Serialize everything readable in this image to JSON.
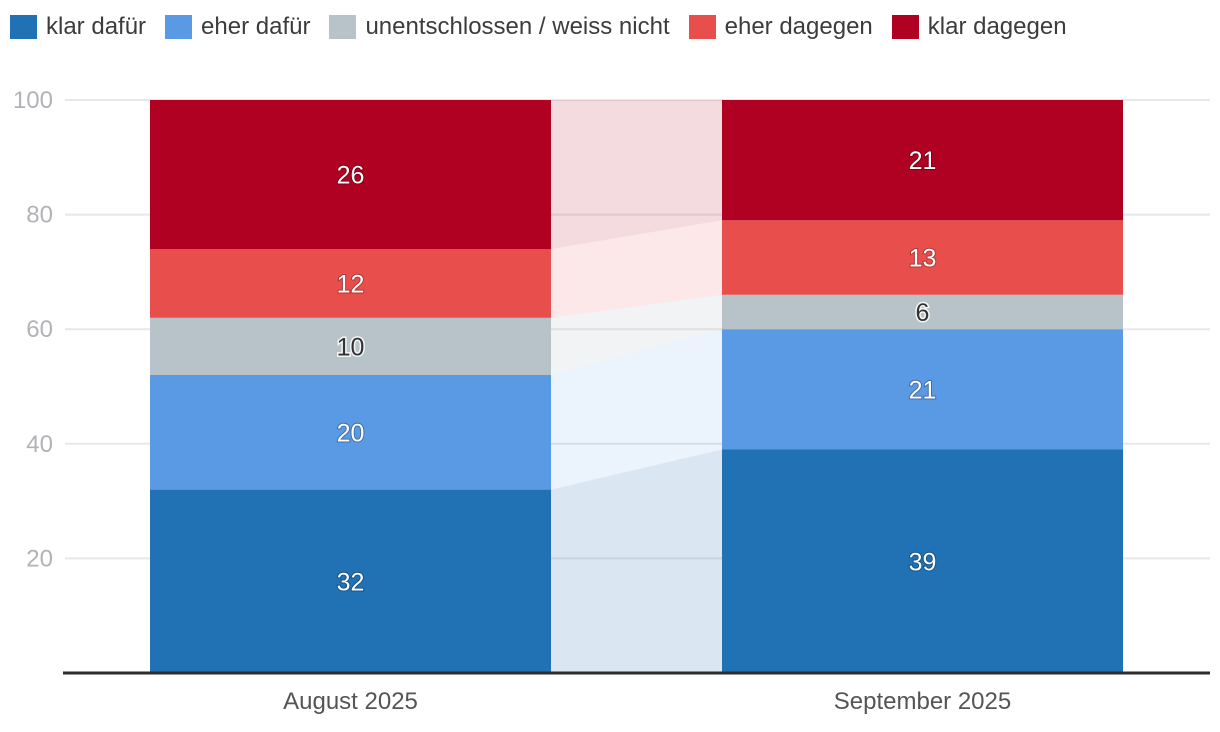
{
  "chart_data": {
    "type": "bar",
    "variant": "stacked-columns-with-flow-connectors",
    "title": "",
    "categories": [
      "August 2025",
      "September 2025"
    ],
    "series": [
      {
        "name": "klar dafür",
        "color": "#2171b5",
        "label_color": "#ffffff",
        "connector_opacity": 0.17,
        "values": [
          32,
          39
        ]
      },
      {
        "name": "eher dafür",
        "color": "#5a99e3",
        "label_color": "#ffffff",
        "connector_opacity": 0.12,
        "values": [
          20,
          21
        ]
      },
      {
        "name": "unentschlossen / weiss nicht",
        "color": "#b7c3c9",
        "label_color": "#333333",
        "connector_opacity": 0.2,
        "values": [
          10,
          6
        ]
      },
      {
        "name": "eher dagegen",
        "color": "#e84f4c",
        "label_color": "#ffffff",
        "connector_opacity": 0.13,
        "values": [
          12,
          13
        ]
      },
      {
        "name": "klar dagegen",
        "color": "#b00122",
        "label_color": "#ffffff",
        "connector_opacity": 0.14,
        "values": [
          26,
          21
        ]
      }
    ],
    "stack_order": "bottom-to-top",
    "y_axis": {
      "ticks": [
        20,
        40,
        60,
        80,
        100
      ],
      "range": [
        0,
        100
      ],
      "gridlines": true
    },
    "legend_position": "top",
    "value_labels_shown": true
  },
  "style": {
    "grid_color": "#e8e8e8",
    "axis_color": "#2e2e2e",
    "tick_label_color": "#b2b2b7",
    "category_label_color": "#555555",
    "legend_text_color": "#3c3c3c",
    "background": "#ffffff"
  }
}
